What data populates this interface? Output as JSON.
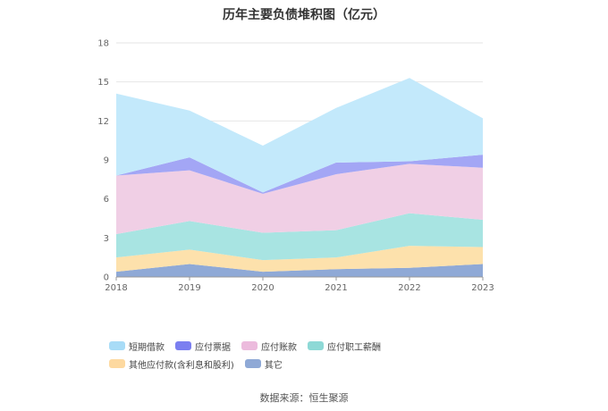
{
  "chart_data": {
    "type": "area",
    "stacked": true,
    "title": "历年主要负债堆积图（亿元）",
    "x": [
      "2018",
      "2019",
      "2020",
      "2021",
      "2022",
      "2023"
    ],
    "ylim": [
      0,
      18
    ],
    "yticks": [
      0,
      3,
      6,
      9,
      12,
      15,
      18
    ],
    "grid": true,
    "legend_position": "bottom",
    "series": [
      {
        "name": "其它",
        "color": "#8fa9d6",
        "values": [
          0.4,
          1.0,
          0.4,
          0.6,
          0.7,
          1.0
        ]
      },
      {
        "name": "其他应付款(含利息和股利)",
        "color": "#fde1ac",
        "values": [
          1.1,
          1.1,
          0.9,
          0.9,
          1.7,
          1.3
        ]
      },
      {
        "name": "应付职工薪酬",
        "color": "#a8e4e2",
        "values": [
          1.8,
          2.2,
          2.1,
          2.1,
          2.5,
          2.1
        ]
      },
      {
        "name": "应付账款",
        "color": "#f0cfe5",
        "values": [
          4.5,
          3.9,
          3.0,
          4.3,
          3.8,
          4.0
        ]
      },
      {
        "name": "应付票据",
        "color": "#a3a6f5",
        "values": [
          0.0,
          1.0,
          0.1,
          0.9,
          0.2,
          1.0
        ]
      },
      {
        "name": "短期借款",
        "color": "#c3e9fb",
        "values": [
          6.3,
          3.6,
          3.6,
          4.2,
          6.4,
          2.8
        ]
      }
    ]
  },
  "legend": {
    "items": [
      {
        "label": "短期借款",
        "color": "#a8dcf7"
      },
      {
        "label": "应付票据",
        "color": "#7b7ff0"
      },
      {
        "label": "应付账款",
        "color": "#ecbbdd"
      },
      {
        "label": "应付职工薪酬",
        "color": "#8ed9d6"
      },
      {
        "label": "其他应付款(含利息和股利)",
        "color": "#fdd9a0"
      },
      {
        "label": "其它",
        "color": "#8fa9d6"
      }
    ]
  },
  "source": "数据来源：恒生聚源"
}
